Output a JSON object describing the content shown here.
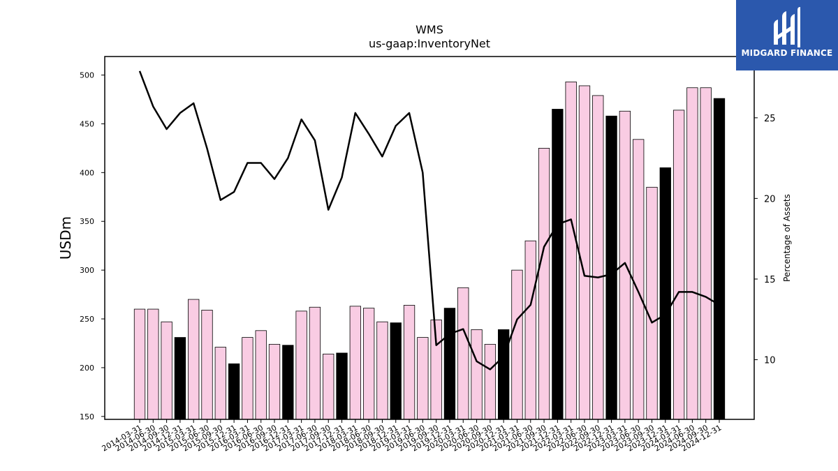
{
  "chart_data": {
    "type": "bar+line",
    "title": "WMS",
    "subtitle": "us-gaap:InventoryNet",
    "ylabel": "USDm",
    "y2label": "Percentage of Assets",
    "ylim": [
      147,
      519
    ],
    "y2lim": [
      6.3,
      28.8
    ],
    "yticks": [
      150,
      200,
      250,
      300,
      350,
      400,
      450,
      500
    ],
    "y2ticks": [
      10,
      15,
      20,
      25
    ],
    "colors": {
      "bar_default": "#f9cce3",
      "bar_highlight": "#000000",
      "line": "#000000",
      "logo_bg": "#2b58ad"
    },
    "categories": [
      "2014-03-31",
      "2014-06-30",
      "2014-09-30",
      "2014-12-31",
      "2015-03-31",
      "2015-06-30",
      "2015-09-30",
      "2015-12-31",
      "2016-03-31",
      "2016-06-30",
      "2016-09-30",
      "2016-12-31",
      "2017-03-31",
      "2017-06-30",
      "2017-09-30",
      "2017-12-31",
      "2018-03-31",
      "2018-06-30",
      "2018-09-30",
      "2018-12-31",
      "2019-03-31",
      "2019-06-30",
      "2019-09-30",
      "2019-12-31",
      "2020-03-31",
      "2020-06-30",
      "2020-09-30",
      "2020-12-31",
      "2021-03-31",
      "2021-06-30",
      "2021-09-30",
      "2021-12-31",
      "2022-03-31",
      "2022-06-30",
      "2022-09-30",
      "2022-12-31",
      "2023-03-31",
      "2023-06-30",
      "2023-09-30",
      "2023-12-31",
      "2024-03-31",
      "2024-06-30",
      "2024-09-30",
      "2024-12-31"
    ],
    "series": [
      {
        "type": "bar",
        "values": [
          260,
          260,
          247,
          231,
          270,
          259,
          221,
          204,
          231,
          238,
          224,
          223,
          258,
          262,
          214,
          215,
          263,
          261,
          247,
          246,
          264,
          231,
          249,
          261,
          282,
          239,
          224,
          239,
          300,
          330,
          425,
          465,
          493,
          489,
          479,
          458,
          463,
          434,
          385,
          405,
          464,
          487,
          487,
          476
        ],
        "highlight": [
          false,
          false,
          false,
          true,
          false,
          false,
          false,
          true,
          false,
          false,
          false,
          true,
          false,
          false,
          false,
          true,
          false,
          false,
          false,
          true,
          false,
          false,
          false,
          true,
          false,
          false,
          false,
          true,
          false,
          false,
          false,
          true,
          false,
          false,
          false,
          true,
          false,
          false,
          false,
          true,
          false,
          false,
          false,
          true
        ]
      },
      {
        "type": "line",
        "axis": "right",
        "values": [
          27.9,
          25.7,
          24.3,
          25.3,
          25.9,
          23.1,
          19.9,
          20.4,
          22.2,
          22.2,
          21.2,
          22.5,
          24.9,
          23.6,
          19.3,
          21.3,
          25.3,
          24.0,
          22.6,
          24.5,
          25.3,
          21.6,
          10.9,
          11.6,
          11.9,
          9.9,
          9.4,
          10.2,
          12.5,
          13.4,
          17.0,
          18.4,
          18.7,
          15.2,
          15.1,
          15.3,
          16.0,
          14.2,
          12.3,
          12.8,
          14.2,
          14.2,
          13.9,
          13.4
        ]
      }
    ]
  },
  "logo": {
    "text": "MIDGARD FINANCE"
  }
}
